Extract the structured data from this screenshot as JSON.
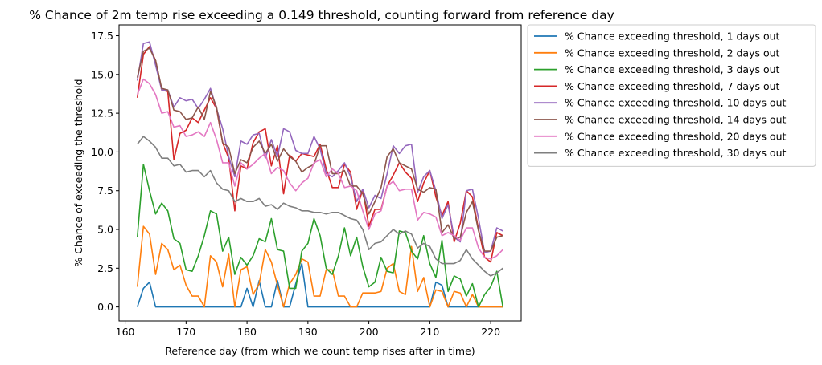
{
  "chart_data": {
    "type": "line",
    "title": "% Chance of 2m temp rise exceeding a 0.149 threshold, counting forward from reference day",
    "xlabel": "Reference day (from which we count temp rises after in time)",
    "ylabel": "% Chance of exceeding the threshold",
    "xlim": [
      159.0,
      225.0
    ],
    "ylim": [
      -0.9,
      18.2
    ],
    "xticks": [
      160,
      170,
      180,
      190,
      200,
      210,
      220
    ],
    "yticks": [
      "0.0",
      "2.5",
      "5.0",
      "7.5",
      "10.0",
      "12.5",
      "15.0",
      "17.5"
    ],
    "ytick_values": [
      0,
      2.5,
      5,
      7.5,
      10,
      12.5,
      15,
      17.5
    ],
    "legend_position": "outside-right-top",
    "x_start": 162,
    "x_end": 222,
    "series": [
      {
        "name": "% Chance exceeding threshold, 1 days out",
        "color": "#1f77b4",
        "values": [
          0,
          1.2,
          1.6,
          0,
          0,
          0,
          0,
          0,
          0,
          0,
          0,
          0,
          0,
          0,
          0,
          0,
          0,
          0,
          1.2,
          0,
          1.7,
          0,
          0,
          1.7,
          0,
          0,
          1.5,
          2.8,
          0,
          0,
          0,
          0,
          0,
          0,
          0,
          0,
          0,
          0,
          0,
          0,
          0,
          0,
          0,
          0,
          0,
          0,
          0,
          0,
          0,
          1.6,
          1.4,
          0,
          0,
          0,
          0,
          0,
          0,
          0,
          0,
          0,
          0
        ]
      },
      {
        "name": "% Chance exceeding threshold, 2 days out",
        "color": "#ff7f0e",
        "values": [
          1.3,
          5.2,
          4.7,
          2.1,
          4.1,
          3.7,
          2.4,
          2.7,
          1.4,
          0.7,
          0.7,
          0,
          3.3,
          2.9,
          1.3,
          3.4,
          0,
          2.4,
          2.6,
          0.8,
          1.5,
          3.7,
          2.9,
          1.4,
          0,
          1.5,
          2.1,
          3.1,
          2.9,
          0.7,
          0.7,
          2.4,
          2.4,
          0.7,
          0.7,
          0,
          0,
          0.9,
          0.9,
          0.9,
          1.0,
          2.5,
          2.8,
          1.0,
          0.8,
          3.9,
          1.0,
          1.9,
          0,
          1.1,
          1.0,
          0,
          1.0,
          0.9,
          0,
          0.8,
          0,
          0,
          0,
          0,
          0
        ]
      },
      {
        "name": "% Chance exceeding threshold, 3 days out",
        "color": "#2ca02c",
        "values": [
          4.5,
          9.2,
          7.5,
          6.0,
          6.7,
          6.2,
          4.4,
          4.1,
          2.4,
          2.3,
          3.3,
          4.6,
          6.2,
          6.0,
          3.6,
          4.5,
          2.1,
          3.2,
          2.7,
          3.3,
          4.4,
          4.2,
          5.7,
          3.7,
          3.6,
          1.2,
          1.2,
          3.6,
          4.1,
          5.7,
          4.6,
          2.5,
          2.1,
          3.3,
          5.1,
          3.3,
          4.5,
          2.6,
          1.3,
          1.6,
          3.2,
          2.3,
          2.2,
          4.9,
          4.8,
          3.6,
          3.1,
          4.6,
          2.8,
          1.9,
          4.3,
          1.0,
          2.0,
          1.8,
          0.7,
          1.5,
          0,
          0.8,
          1.3,
          2.3,
          0
        ]
      },
      {
        "name": "% Chance exceeding threshold, 7 days out",
        "color": "#d62728",
        "values": [
          13.5,
          16.3,
          16.8,
          15.9,
          14.0,
          13.9,
          9.5,
          11.2,
          11.4,
          12.2,
          11.9,
          12.7,
          13.5,
          12.8,
          10.6,
          9.6,
          6.2,
          9.1,
          8.9,
          10.6,
          11.3,
          11.5,
          9.1,
          10.4,
          7.3,
          9.8,
          9.4,
          9.9,
          9.8,
          9.7,
          10.5,
          8.9,
          7.7,
          7.7,
          9.2,
          8.7,
          6.3,
          7.6,
          5.2,
          6.3,
          6.3,
          7.8,
          8.5,
          9.3,
          8.7,
          8.3,
          6.8,
          8.0,
          8.8,
          7.1,
          5.9,
          6.8,
          4.2,
          5.4,
          7.5,
          7.1,
          5.0,
          3.2,
          2.9,
          4.8,
          4.6
        ]
      },
      {
        "name": "% Chance exceeding threshold, 10 days out",
        "color": "#9467bd",
        "values": [
          14.6,
          17.0,
          17.1,
          15.6,
          14.0,
          14.0,
          12.9,
          13.5,
          13.3,
          13.4,
          12.8,
          13.4,
          14.1,
          12.8,
          11.5,
          9.7,
          8.4,
          10.7,
          10.5,
          11.1,
          11.2,
          9.6,
          10.8,
          9.7,
          11.5,
          11.3,
          10.1,
          9.9,
          9.9,
          11.0,
          10.2,
          8.6,
          8.4,
          8.8,
          9.3,
          8.4,
          6.8,
          7.6,
          6.4,
          7.2,
          7.0,
          8.6,
          10.4,
          9.9,
          10.4,
          10.5,
          7.4,
          8.4,
          8.8,
          7.5,
          5.7,
          6.6,
          4.5,
          4.2,
          7.5,
          7.6,
          5.7,
          3.5,
          3.6,
          5.1,
          4.9
        ]
      },
      {
        "name": "% Chance exceeding threshold, 14 days out",
        "color": "#8c564b",
        "values": [
          14.8,
          16.5,
          16.7,
          15.9,
          14.1,
          14.0,
          12.7,
          12.6,
          12.1,
          12.2,
          12.9,
          12.1,
          13.9,
          12.9,
          10.6,
          10.3,
          8.6,
          9.5,
          9.3,
          10.3,
          10.7,
          9.9,
          10.5,
          9.4,
          10.2,
          9.7,
          9.4,
          8.7,
          9.0,
          9.2,
          10.4,
          10.4,
          8.6,
          8.6,
          8.8,
          7.8,
          7.8,
          7.3,
          6.0,
          6.8,
          7.7,
          9.7,
          10.2,
          9.3,
          9.1,
          8.9,
          7.6,
          7.4,
          7.7,
          7.6,
          4.8,
          5.3,
          4.4,
          4.5,
          6.1,
          6.8,
          4.9,
          3.6,
          3.6,
          4.5,
          4.6
        ]
      },
      {
        "name": "% Chance exceeding threshold, 20 days out",
        "color": "#e377c2",
        "values": [
          13.7,
          14.7,
          14.4,
          13.7,
          12.5,
          12.6,
          11.6,
          11.7,
          11.0,
          11.1,
          11.3,
          11.0,
          11.9,
          10.8,
          9.3,
          9.3,
          7.8,
          9.3,
          8.9,
          9.2,
          9.6,
          9.9,
          8.6,
          9.0,
          8.8,
          8.0,
          7.5,
          8.0,
          8.3,
          9.3,
          9.5,
          8.4,
          8.9,
          8.6,
          7.7,
          7.8,
          7.5,
          6.2,
          5.0,
          6.0,
          6.2,
          7.8,
          8.1,
          7.5,
          7.6,
          7.6,
          5.6,
          6.1,
          6.0,
          5.8,
          4.6,
          4.8,
          4.6,
          4.3,
          5.1,
          5.1,
          3.8,
          3.2,
          3.1,
          3.3,
          3.7
        ]
      },
      {
        "name": "% Chance exceeding threshold, 30 days out",
        "color": "#7f7f7f",
        "values": [
          10.5,
          11.0,
          10.7,
          10.3,
          9.6,
          9.6,
          9.1,
          9.2,
          8.7,
          8.8,
          8.8,
          8.4,
          8.8,
          8.0,
          7.6,
          7.5,
          6.8,
          7.0,
          6.8,
          6.8,
          7.0,
          6.5,
          6.6,
          6.3,
          6.7,
          6.5,
          6.4,
          6.2,
          6.2,
          6.1,
          6.1,
          6.0,
          6.1,
          6.1,
          5.9,
          5.7,
          5.6,
          5.0,
          3.7,
          4.1,
          4.2,
          4.6,
          5.0,
          4.7,
          4.9,
          4.7,
          3.8,
          4.1,
          3.9,
          3.1,
          2.8,
          2.8,
          2.8,
          3.0,
          3.7,
          3.1,
          2.7,
          2.3,
          2.0,
          2.2,
          2.5
        ]
      }
    ]
  }
}
